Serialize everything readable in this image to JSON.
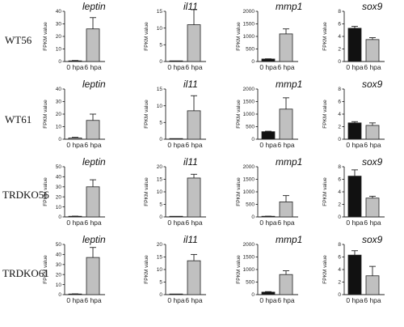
{
  "figure": {
    "row_labels": [
      "WT56",
      "WT61",
      "TRDKO56",
      "TRDKO61"
    ],
    "gene_labels": [
      "leptin",
      "il11",
      "mmp1",
      "sox9"
    ]
  },
  "colors": {
    "light_bar": "#c0c0c0",
    "dark_bar": "#111111",
    "axis": "#222222"
  },
  "chart_data": [
    {
      "type": "bar",
      "row": "WT56",
      "title": "leptin",
      "ylabel": "FPKM value",
      "categories": [
        "0 hpa",
        "6 hpa"
      ],
      "values": [
        0.5,
        26
      ],
      "errors": [
        0.3,
        9
      ],
      "ylim": [
        0,
        40
      ],
      "yticks": [
        0,
        10,
        20,
        30,
        40
      ],
      "bar_colors": [
        "light",
        "light"
      ]
    },
    {
      "type": "bar",
      "row": "WT56",
      "title": "il11",
      "ylabel": "FPKM value",
      "categories": [
        "0 hpa",
        "6 hpa"
      ],
      "values": [
        0,
        11
      ],
      "errors": [
        0,
        4.5
      ],
      "ylim": [
        0,
        15
      ],
      "yticks": [
        0,
        5,
        10,
        15
      ],
      "bar_colors": [
        "light",
        "light"
      ]
    },
    {
      "type": "bar",
      "row": "WT56",
      "title": "mmp1",
      "ylabel": "FPKM value",
      "categories": [
        "0 hpa",
        "6 hpa"
      ],
      "values": [
        100,
        1100
      ],
      "errors": [
        10,
        200
      ],
      "ylim": [
        0,
        2000
      ],
      "yticks": [
        0,
        500,
        1000,
        1500,
        2000
      ],
      "bar_colors": [
        "dark",
        "light"
      ]
    },
    {
      "type": "bar",
      "row": "WT56",
      "title": "sox9",
      "ylabel": "FPKM value",
      "categories": [
        "0 hpa",
        "6 hpa"
      ],
      "values": [
        5.3,
        3.5
      ],
      "errors": [
        0.3,
        0.3
      ],
      "ylim": [
        0,
        8
      ],
      "yticks": [
        0,
        2,
        4,
        6,
        8
      ],
      "bar_colors": [
        "dark",
        "light"
      ]
    },
    {
      "type": "bar",
      "row": "WT61",
      "title": "leptin",
      "ylabel": "FPKM value",
      "categories": [
        "0 hpa",
        "6 hpa"
      ],
      "values": [
        1,
        15
      ],
      "errors": [
        0.5,
        5
      ],
      "ylim": [
        0,
        40
      ],
      "yticks": [
        0,
        10,
        20,
        30,
        40
      ],
      "bar_colors": [
        "light",
        "light"
      ]
    },
    {
      "type": "bar",
      "row": "WT61",
      "title": "il11",
      "ylabel": "FPKM value",
      "categories": [
        "0 hpa",
        "6 hpa"
      ],
      "values": [
        0,
        8.5
      ],
      "errors": [
        0,
        4.5
      ],
      "ylim": [
        0,
        15
      ],
      "yticks": [
        0,
        5,
        10,
        15
      ],
      "bar_colors": [
        "light",
        "light"
      ]
    },
    {
      "type": "bar",
      "row": "WT61",
      "title": "mmp1",
      "ylabel": "FPKM value",
      "categories": [
        "0 hpa",
        "6 hpa"
      ],
      "values": [
        300,
        1200
      ],
      "errors": [
        20,
        450
      ],
      "ylim": [
        0,
        2000
      ],
      "yticks": [
        0,
        500,
        1000,
        1500,
        2000
      ],
      "bar_colors": [
        "dark",
        "light"
      ]
    },
    {
      "type": "bar",
      "row": "WT61",
      "title": "sox9",
      "ylabel": "FPKM value",
      "categories": [
        "0 hpa",
        "6 hpa"
      ],
      "values": [
        2.6,
        2.2
      ],
      "errors": [
        0.2,
        0.4
      ],
      "ylim": [
        0,
        8
      ],
      "yticks": [
        0,
        2,
        4,
        6,
        8
      ],
      "bar_colors": [
        "dark",
        "light"
      ]
    },
    {
      "type": "bar",
      "row": "TRDKO56",
      "title": "leptin",
      "ylabel": "FPKM value",
      "categories": [
        "0 hpa",
        "6 hpa"
      ],
      "values": [
        0.5,
        30
      ],
      "errors": [
        0.3,
        7
      ],
      "ylim": [
        0,
        50
      ],
      "yticks": [
        0,
        10,
        20,
        30,
        40,
        50
      ],
      "bar_colors": [
        "light",
        "light"
      ]
    },
    {
      "type": "bar",
      "row": "TRDKO56",
      "title": "il11",
      "ylabel": "FPKM value",
      "categories": [
        "0 hpa",
        "6 hpa"
      ],
      "values": [
        0,
        15.5
      ],
      "errors": [
        0,
        1.5
      ],
      "ylim": [
        0,
        20
      ],
      "yticks": [
        0,
        5,
        10,
        15,
        20
      ],
      "bar_colors": [
        "light",
        "light"
      ]
    },
    {
      "type": "bar",
      "row": "TRDKO56",
      "title": "mmp1",
      "ylabel": "FPKM value",
      "categories": [
        "0 hpa",
        "6 hpa"
      ],
      "values": [
        20,
        600
      ],
      "errors": [
        10,
        250
      ],
      "ylim": [
        0,
        2000
      ],
      "yticks": [
        0,
        500,
        1000,
        1500,
        2000
      ],
      "bar_colors": [
        "dark",
        "light"
      ]
    },
    {
      "type": "bar",
      "row": "TRDKO56",
      "title": "sox9",
      "ylabel": "FPKM value",
      "categories": [
        "0 hpa",
        "6 hpa"
      ],
      "values": [
        6.5,
        3
      ],
      "errors": [
        1,
        0.3
      ],
      "ylim": [
        0,
        8
      ],
      "yticks": [
        0,
        2,
        4,
        6,
        8
      ],
      "bar_colors": [
        "dark",
        "light"
      ]
    },
    {
      "type": "bar",
      "row": "TRDKO61",
      "title": "leptin",
      "ylabel": "FPKM value",
      "categories": [
        "0 hpa",
        "6 hpa"
      ],
      "values": [
        0.5,
        37
      ],
      "errors": [
        0.3,
        10
      ],
      "ylim": [
        0,
        50
      ],
      "yticks": [
        0,
        10,
        20,
        30,
        40,
        50
      ],
      "bar_colors": [
        "light",
        "light"
      ]
    },
    {
      "type": "bar",
      "row": "TRDKO61",
      "title": "il11",
      "ylabel": "FPKM value",
      "categories": [
        "0 hpa",
        "6 hpa"
      ],
      "values": [
        0,
        13.5
      ],
      "errors": [
        0,
        2.5
      ],
      "ylim": [
        0,
        20
      ],
      "yticks": [
        0,
        5,
        10,
        15,
        20
      ],
      "bar_colors": [
        "light",
        "light"
      ]
    },
    {
      "type": "bar",
      "row": "TRDKO61",
      "title": "mmp1",
      "ylabel": "FPKM value",
      "categories": [
        "0 hpa",
        "6 hpa"
      ],
      "values": [
        100,
        800
      ],
      "errors": [
        20,
        150
      ],
      "ylim": [
        0,
        2000
      ],
      "yticks": [
        0,
        500,
        1000,
        1500,
        2000
      ],
      "bar_colors": [
        "dark",
        "light"
      ]
    },
    {
      "type": "bar",
      "row": "TRDKO61",
      "title": "sox9",
      "ylabel": "FPKM value",
      "categories": [
        "0 hpa",
        "6 hpa"
      ],
      "values": [
        6.3,
        3
      ],
      "errors": [
        0.7,
        1.5
      ],
      "ylim": [
        0,
        8
      ],
      "yticks": [
        0,
        2,
        4,
        6,
        8
      ],
      "bar_colors": [
        "dark",
        "light"
      ]
    }
  ]
}
